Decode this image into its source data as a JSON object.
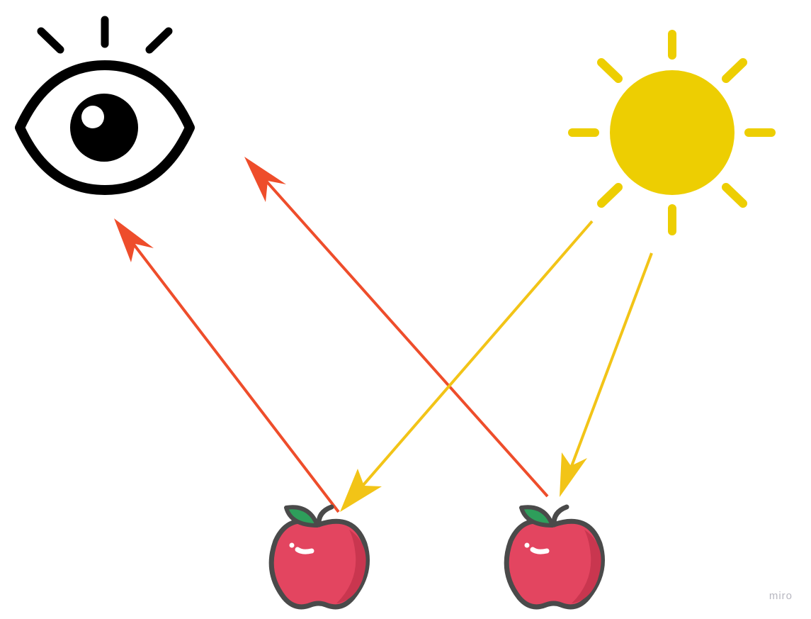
{
  "diagram": {
    "nodes": [
      {
        "id": "eye",
        "icon": "eye-icon"
      },
      {
        "id": "sun",
        "icon": "sun-icon"
      },
      {
        "id": "apple-left",
        "icon": "apple-icon"
      },
      {
        "id": "apple-right",
        "icon": "apple-icon"
      }
    ],
    "edges": [
      {
        "from": "sun",
        "to": "apple-left",
        "kind": "light-ray",
        "color": "#F2C417"
      },
      {
        "from": "sun",
        "to": "apple-right",
        "kind": "light-ray",
        "color": "#F2C417"
      },
      {
        "from": "apple-left",
        "to": "eye",
        "kind": "reflected-ray",
        "color": "#EE4D2B"
      },
      {
        "from": "apple-right",
        "to": "eye",
        "kind": "reflected-ray",
        "color": "#EE4D2B"
      }
    ]
  },
  "colors": {
    "eye": "#000000",
    "sun": "#EDCE02",
    "light_ray": "#F2C417",
    "reflected_ray": "#EE4D2B",
    "apple_body": "#E34560",
    "apple_shade": "#C9364F",
    "apple_outline": "#4A4A4A",
    "leaf": "#2E9E5B",
    "watermark": "#B7B7C0"
  },
  "watermark": {
    "text": "miro"
  }
}
